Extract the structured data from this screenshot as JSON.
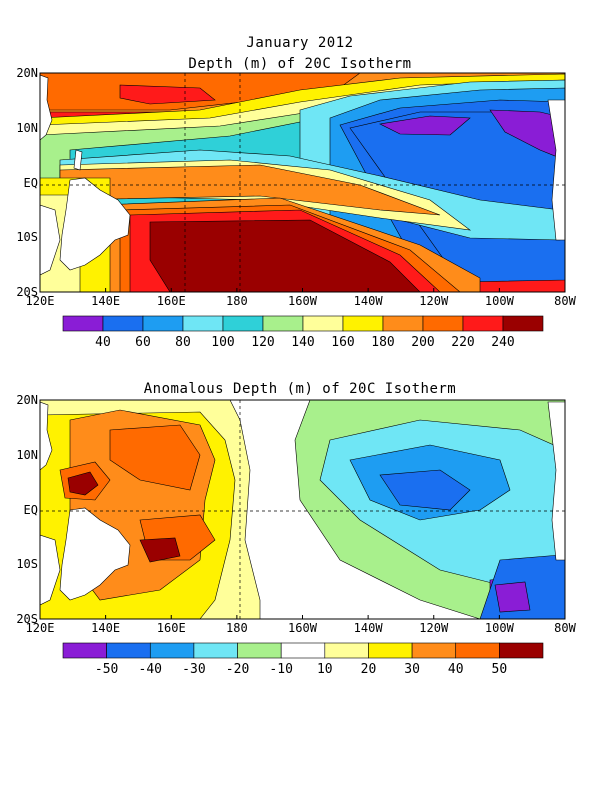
{
  "chart_data": [
    {
      "type": "heatmap",
      "title": "January 2012",
      "subtitle": "Depth (m) of 20C Isotherm",
      "xticks": [
        "120E",
        "140E",
        "160E",
        "180",
        "160W",
        "140W",
        "120W",
        "100W",
        "80W"
      ],
      "yticks": [
        "20N",
        "10N",
        "EQ",
        "10S",
        "20S"
      ],
      "colorbar": {
        "labels": [
          "40",
          "60",
          "80",
          "100",
          "120",
          "140",
          "160",
          "180",
          "200",
          "220",
          "240"
        ],
        "colors": [
          "#8a1dd6",
          "#1a6ff0",
          "#1e9df2",
          "#6fe6f5",
          "#2fd0d8",
          "#a8f08c",
          "#ffff9a",
          "#fff200",
          "#ff8c1a",
          "#ff6a00",
          "#ff1a1a",
          "#9a0000"
        ]
      },
      "description_values": {
        "west_pacific_south_max": 240,
        "east_pacific_north_min": 40
      }
    },
    {
      "type": "heatmap",
      "title": "Anomalous Depth (m) of 20C Isotherm",
      "xticks": [
        "120E",
        "140E",
        "160E",
        "180",
        "160W",
        "140W",
        "120W",
        "100W",
        "80W"
      ],
      "yticks": [
        "20N",
        "10N",
        "EQ",
        "10S",
        "20S"
      ],
      "colorbar": {
        "labels": [
          "-50",
          "-40",
          "-30",
          "-20",
          "-10",
          "10",
          "20",
          "30",
          "40",
          "50"
        ],
        "colors": [
          "#8a1dd6",
          "#1a6ff0",
          "#1e9df2",
          "#6fe6f5",
          "#a8f08c",
          "#ffffff",
          "#ffff9a",
          "#fff200",
          "#ff8c1a",
          "#ff6a00",
          "#9a0000"
        ]
      }
    }
  ]
}
